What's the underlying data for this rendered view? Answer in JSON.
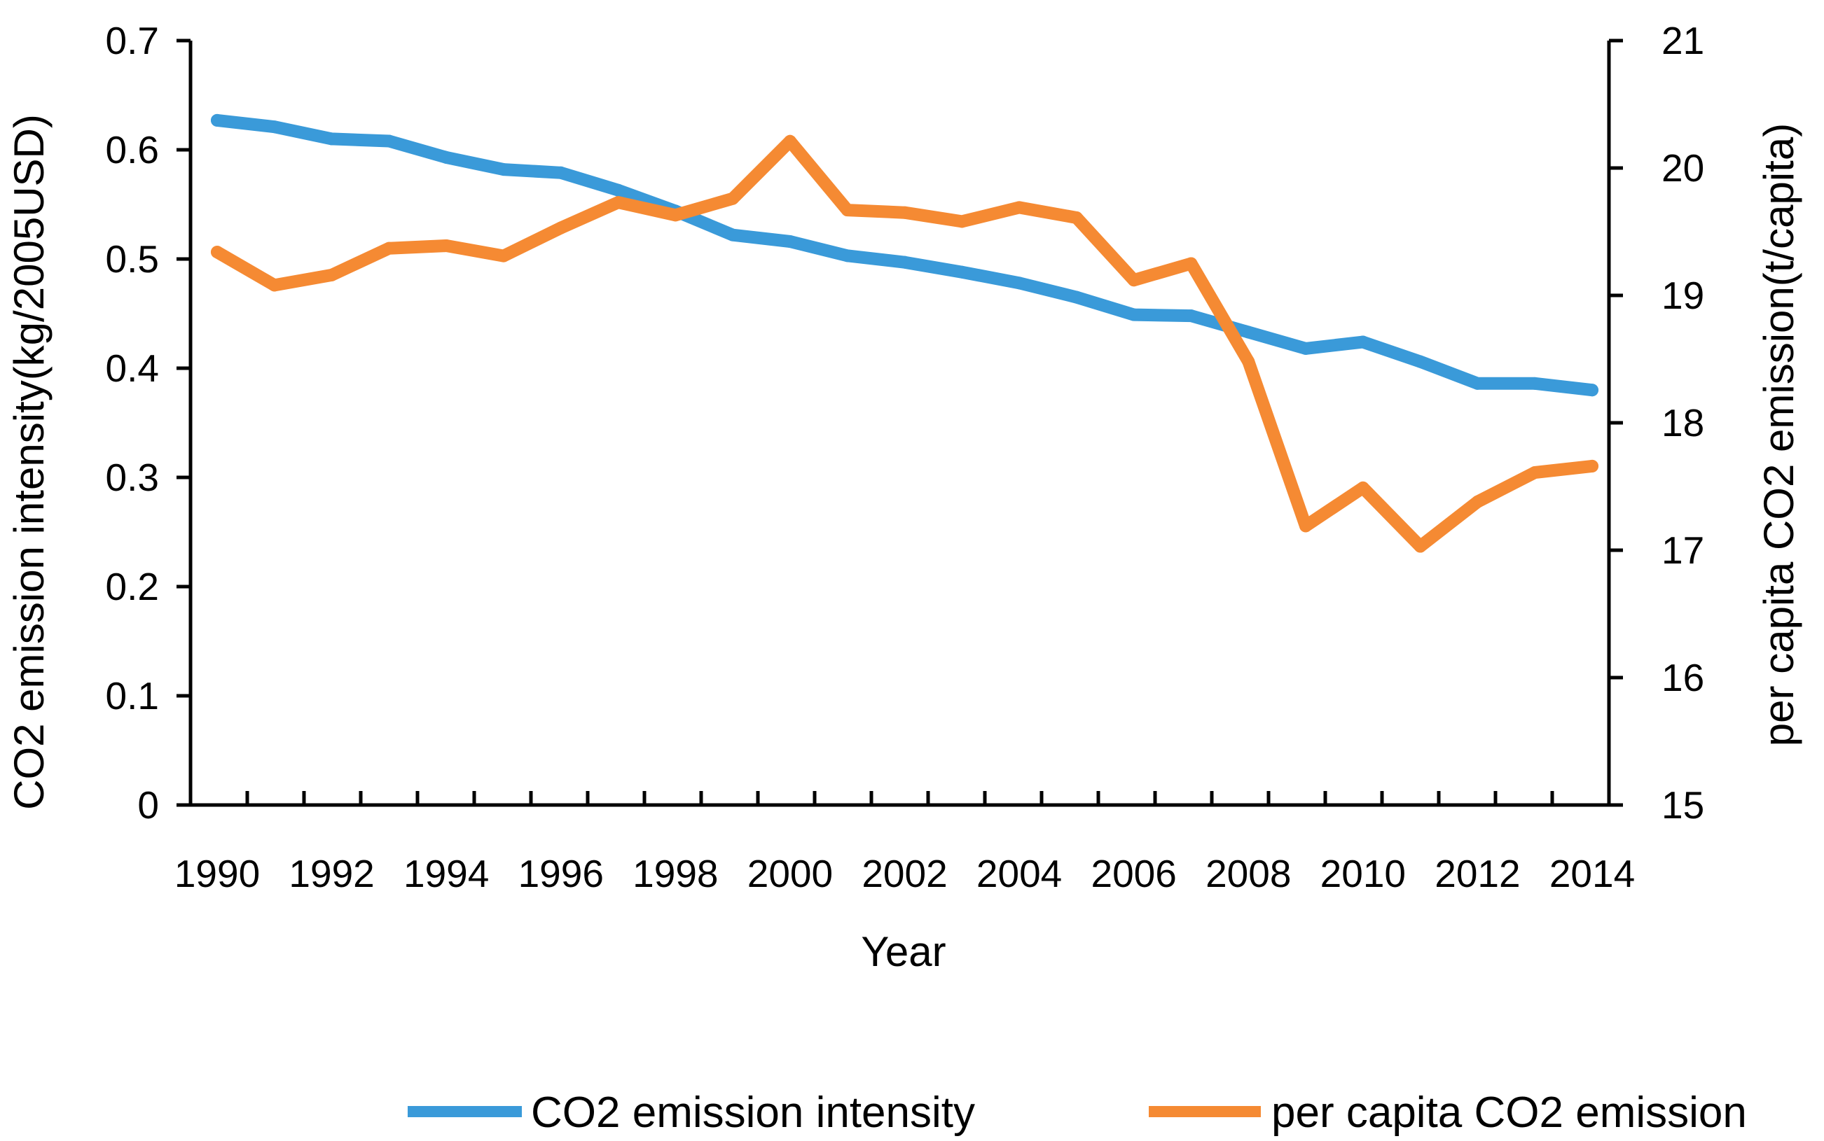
{
  "chart_data": {
    "type": "line",
    "title": "",
    "x": [
      1990,
      1991,
      1992,
      1993,
      1994,
      1995,
      1996,
      1997,
      1998,
      1999,
      2000,
      2001,
      2002,
      2003,
      2004,
      2005,
      2006,
      2007,
      2008,
      2009,
      2010,
      2011,
      2012,
      2013,
      2014
    ],
    "x_tick_labels": [
      "1990",
      "1992",
      "1994",
      "1996",
      "1998",
      "2000",
      "2002",
      "2004",
      "2006",
      "2008",
      "2010",
      "2012",
      "2014"
    ],
    "xlabel": "Year",
    "ylabel_left": "CO2 emission intensity(kg/2005USD)",
    "ylabel_right": "per capita CO2 emission(t/capita)",
    "ylim_left": [
      0,
      0.7
    ],
    "ylim_right": [
      15,
      21
    ],
    "y_ticks_left": [
      "0",
      "0.1",
      "0.2",
      "0.3",
      "0.4",
      "0.5",
      "0.6",
      "0.7"
    ],
    "y_ticks_right": [
      "15",
      "16",
      "17",
      "18",
      "19",
      "20",
      "21"
    ],
    "grid": false,
    "legend_position": "bottom",
    "series": [
      {
        "name": "CO2 emission intensity",
        "axis": "left",
        "color": "#3A9AD9",
        "values": [
          0.627,
          0.621,
          0.61,
          0.608,
          0.593,
          0.582,
          0.579,
          0.563,
          0.544,
          0.522,
          0.516,
          0.503,
          0.497,
          0.488,
          0.478,
          0.465,
          0.449,
          0.448,
          0.433,
          0.418,
          0.424,
          0.406,
          0.386,
          0.386,
          0.38
        ]
      },
      {
        "name": "per capita CO2 emission",
        "axis": "right",
        "color": "#F58A33",
        "values": [
          19.34,
          19.08,
          19.16,
          19.37,
          19.39,
          19.31,
          19.53,
          19.73,
          19.63,
          19.76,
          20.21,
          19.67,
          19.65,
          19.58,
          19.69,
          19.61,
          19.12,
          19.25,
          18.48,
          17.19,
          17.49,
          17.03,
          17.38,
          17.61,
          17.66
        ]
      }
    ]
  }
}
